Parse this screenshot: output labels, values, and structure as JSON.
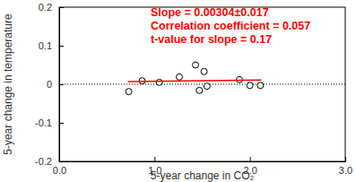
{
  "chart_data": {
    "type": "scatter",
    "x_label": "5-year change in CO₂",
    "y_label": "5-year change in temperature",
    "xlim": [
      0,
      3
    ],
    "xticks": [
      {
        "value": 0,
        "label": "0.0"
      },
      {
        "value": 1,
        "label": "1.0"
      },
      {
        "value": 2,
        "label": "2.0"
      },
      {
        "value": 3,
        "label": "3.0"
      }
    ],
    "ylim": [
      -0.2,
      0.2
    ],
    "yticks": [
      -0.2,
      -0.1,
      0,
      0.1,
      0.2
    ],
    "hline": 0,
    "series": [
      {
        "type": "scatter",
        "marker": "circle",
        "color": "#000000",
        "x": [
          0.73,
          0.87,
          1.05,
          1.26,
          1.43,
          1.47,
          1.52,
          1.55,
          1.89,
          2.0,
          2.11
        ],
        "values": [
          -0.019,
          0.009,
          0.005,
          0.019,
          0.05,
          -0.016,
          0.033,
          -0.005,
          0.012,
          -0.003,
          -0.003
        ]
      },
      {
        "type": "line",
        "color": "#ff0000",
        "x": [
          0.72,
          2.12
        ],
        "values": [
          0.007,
          0.011
        ]
      }
    ],
    "annotations": [
      {
        "text": "Slope = 0.00304±0.017",
        "color": "#ff0000"
      },
      {
        "text": "Correlation coefficient = 0.057",
        "color": "#ff0000"
      },
      {
        "text": "t-value for slope = 0.17",
        "color": "#ff0000"
      }
    ]
  }
}
